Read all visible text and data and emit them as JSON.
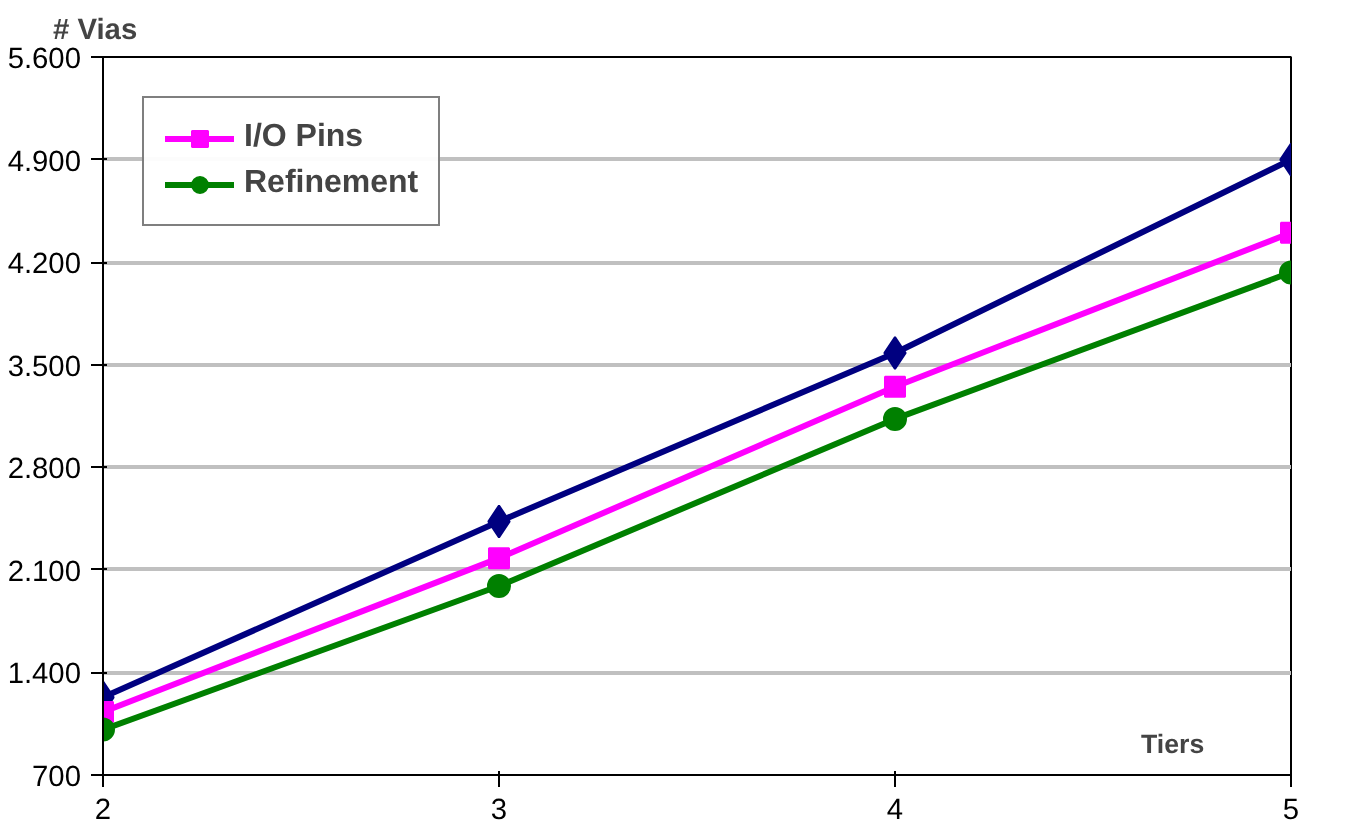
{
  "chart_data": {
    "type": "line",
    "ylabel": "# Vias",
    "xlabel": "Tiers",
    "x": [
      2,
      3,
      4,
      5
    ],
    "xlim": [
      2,
      5
    ],
    "xticks": [
      2,
      3,
      4,
      5
    ],
    "ylim": [
      700,
      5600
    ],
    "yticks": [
      {
        "value": 700,
        "label": "700"
      },
      {
        "value": 1400,
        "label": "1.400"
      },
      {
        "value": 2100,
        "label": "2.100"
      },
      {
        "value": 2800,
        "label": "2.800"
      },
      {
        "value": 3500,
        "label": "3.500"
      },
      {
        "value": 4200,
        "label": "4.200"
      },
      {
        "value": 4900,
        "label": "4.900"
      },
      {
        "value": 5600,
        "label": "5.600"
      }
    ],
    "grid": "y",
    "legend": "top left",
    "line_style": "solid",
    "series": [
      {
        "color": "#000080",
        "marker": "diamond",
        "values": [
          1230,
          2430,
          3580,
          4900
        ]
      },
      {
        "name": "I/O Pins",
        "color": "#ff00ff",
        "marker": "square",
        "values": [
          1130,
          2180,
          3350,
          4400
        ]
      },
      {
        "name": "Refinement",
        "color": "#008000",
        "marker": "circle",
        "values": [
          1010,
          1990,
          3130,
          4130
        ]
      }
    ]
  }
}
